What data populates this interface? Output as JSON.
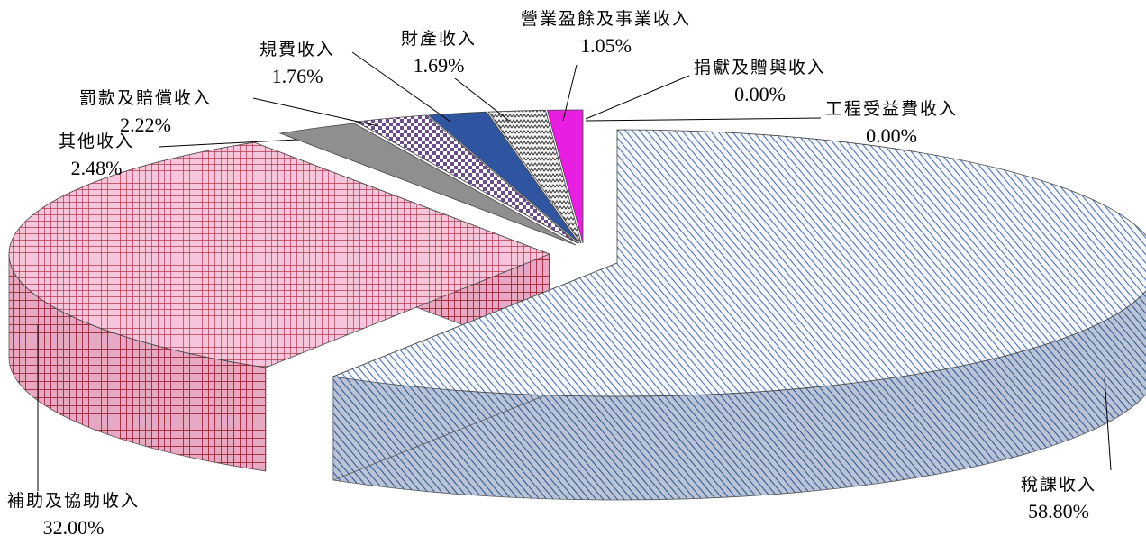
{
  "chart_data": {
    "type": "pie",
    "style": "3d-exploded",
    "slices": [
      {
        "label": "稅課收入",
        "percent": "58.80%",
        "value": 58.8,
        "color": "#9fb3d9"
      },
      {
        "label": "補助及協助收入",
        "percent": "32.00%",
        "value": 32.0,
        "color": "#e79bbf"
      },
      {
        "label": "其他收入",
        "percent": "2.48%",
        "value": 2.48,
        "color": "#555555"
      },
      {
        "label": "罰款及賠償收入",
        "percent": "2.22%",
        "value": 2.22,
        "color": "#7d6b9e"
      },
      {
        "label": "規費收入",
        "percent": "1.76%",
        "value": 1.76,
        "color": "#2f55a0"
      },
      {
        "label": "財產收入",
        "percent": "1.69%",
        "value": 1.69,
        "color": "#b8b8b8"
      },
      {
        "label": "營業盈餘及事業收入",
        "percent": "1.05%",
        "value": 1.05,
        "color": "#e91ee3"
      },
      {
        "label": "捐獻及贈與收入",
        "percent": "0.00%",
        "value": 0.0,
        "color": "#ffffff"
      },
      {
        "label": "工程受益費收入",
        "percent": "0.00%",
        "value": 0.0,
        "color": "#ffffff"
      }
    ]
  }
}
